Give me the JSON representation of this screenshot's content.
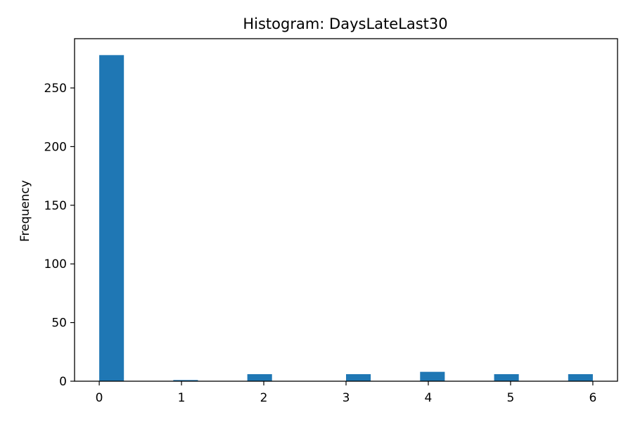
{
  "chart_data": {
    "type": "bar",
    "title": "Histogram: DaysLateLast30",
    "xlabel": "",
    "ylabel": "Frequency",
    "bins": [
      {
        "start": 0.0,
        "end": 0.3,
        "count": 278
      },
      {
        "start": 0.3,
        "end": 0.6,
        "count": 0
      },
      {
        "start": 0.6,
        "end": 0.9,
        "count": 0
      },
      {
        "start": 0.9,
        "end": 1.2,
        "count": 1
      },
      {
        "start": 1.2,
        "end": 1.5,
        "count": 0
      },
      {
        "start": 1.5,
        "end": 1.8,
        "count": 0
      },
      {
        "start": 1.8,
        "end": 2.1,
        "count": 6
      },
      {
        "start": 2.1,
        "end": 2.4,
        "count": 0
      },
      {
        "start": 2.4,
        "end": 2.7,
        "count": 0
      },
      {
        "start": 2.7,
        "end": 3.0,
        "count": 0
      },
      {
        "start": 3.0,
        "end": 3.3,
        "count": 6
      },
      {
        "start": 3.3,
        "end": 3.6,
        "count": 0
      },
      {
        "start": 3.6,
        "end": 3.9,
        "count": 0
      },
      {
        "start": 3.9,
        "end": 4.2,
        "count": 8
      },
      {
        "start": 4.2,
        "end": 4.5,
        "count": 0
      },
      {
        "start": 4.5,
        "end": 4.8,
        "count": 0
      },
      {
        "start": 4.8,
        "end": 5.1,
        "count": 6
      },
      {
        "start": 5.1,
        "end": 5.4,
        "count": 0
      },
      {
        "start": 5.4,
        "end": 5.7,
        "count": 0
      },
      {
        "start": 5.7,
        "end": 6.0,
        "count": 6
      }
    ],
    "xlim": [
      -0.3,
      6.3
    ],
    "ylim": [
      0,
      292
    ],
    "xticks": [
      0,
      1,
      2,
      3,
      4,
      5,
      6
    ],
    "yticks": [
      0,
      50,
      100,
      150,
      200,
      250
    ],
    "grid": false,
    "bar_color": "#1f77b4"
  }
}
